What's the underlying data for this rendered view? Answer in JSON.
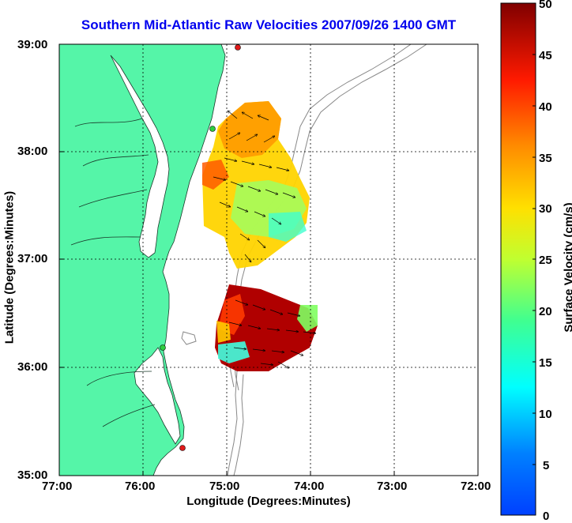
{
  "title": "Southern Mid-Atlantic Raw Velocities 2007/09/26 1400 GMT",
  "x_axis": {
    "label": "Longitude (Degrees:Minutes)",
    "ticks": [
      "77:00",
      "76:00",
      "75:00",
      "74:00",
      "73:00",
      "72:00"
    ]
  },
  "y_axis": {
    "label": "Latitude (Degrees:Minutes)",
    "ticks": [
      "39:00",
      "38:00",
      "37:00",
      "36:00",
      "35:00"
    ]
  },
  "colorbar": {
    "label": "Surface Velocity (cm/s)",
    "ticks": [
      "50",
      "45",
      "40",
      "35",
      "30",
      "25",
      "20",
      "15",
      "10",
      "5",
      "0"
    ],
    "range": [
      0,
      50
    ],
    "colormap": "jet"
  },
  "map": {
    "extent_lon": [
      -77,
      -72
    ],
    "extent_lat": [
      35,
      39
    ],
    "land_color": "#55f5a8",
    "grid": "dotted",
    "site_markers": [
      {
        "color": "#e11a1a"
      },
      {
        "color": "#2ecc40"
      },
      {
        "color": "#2ecc40"
      },
      {
        "color": "#e11a1a"
      }
    ]
  }
}
